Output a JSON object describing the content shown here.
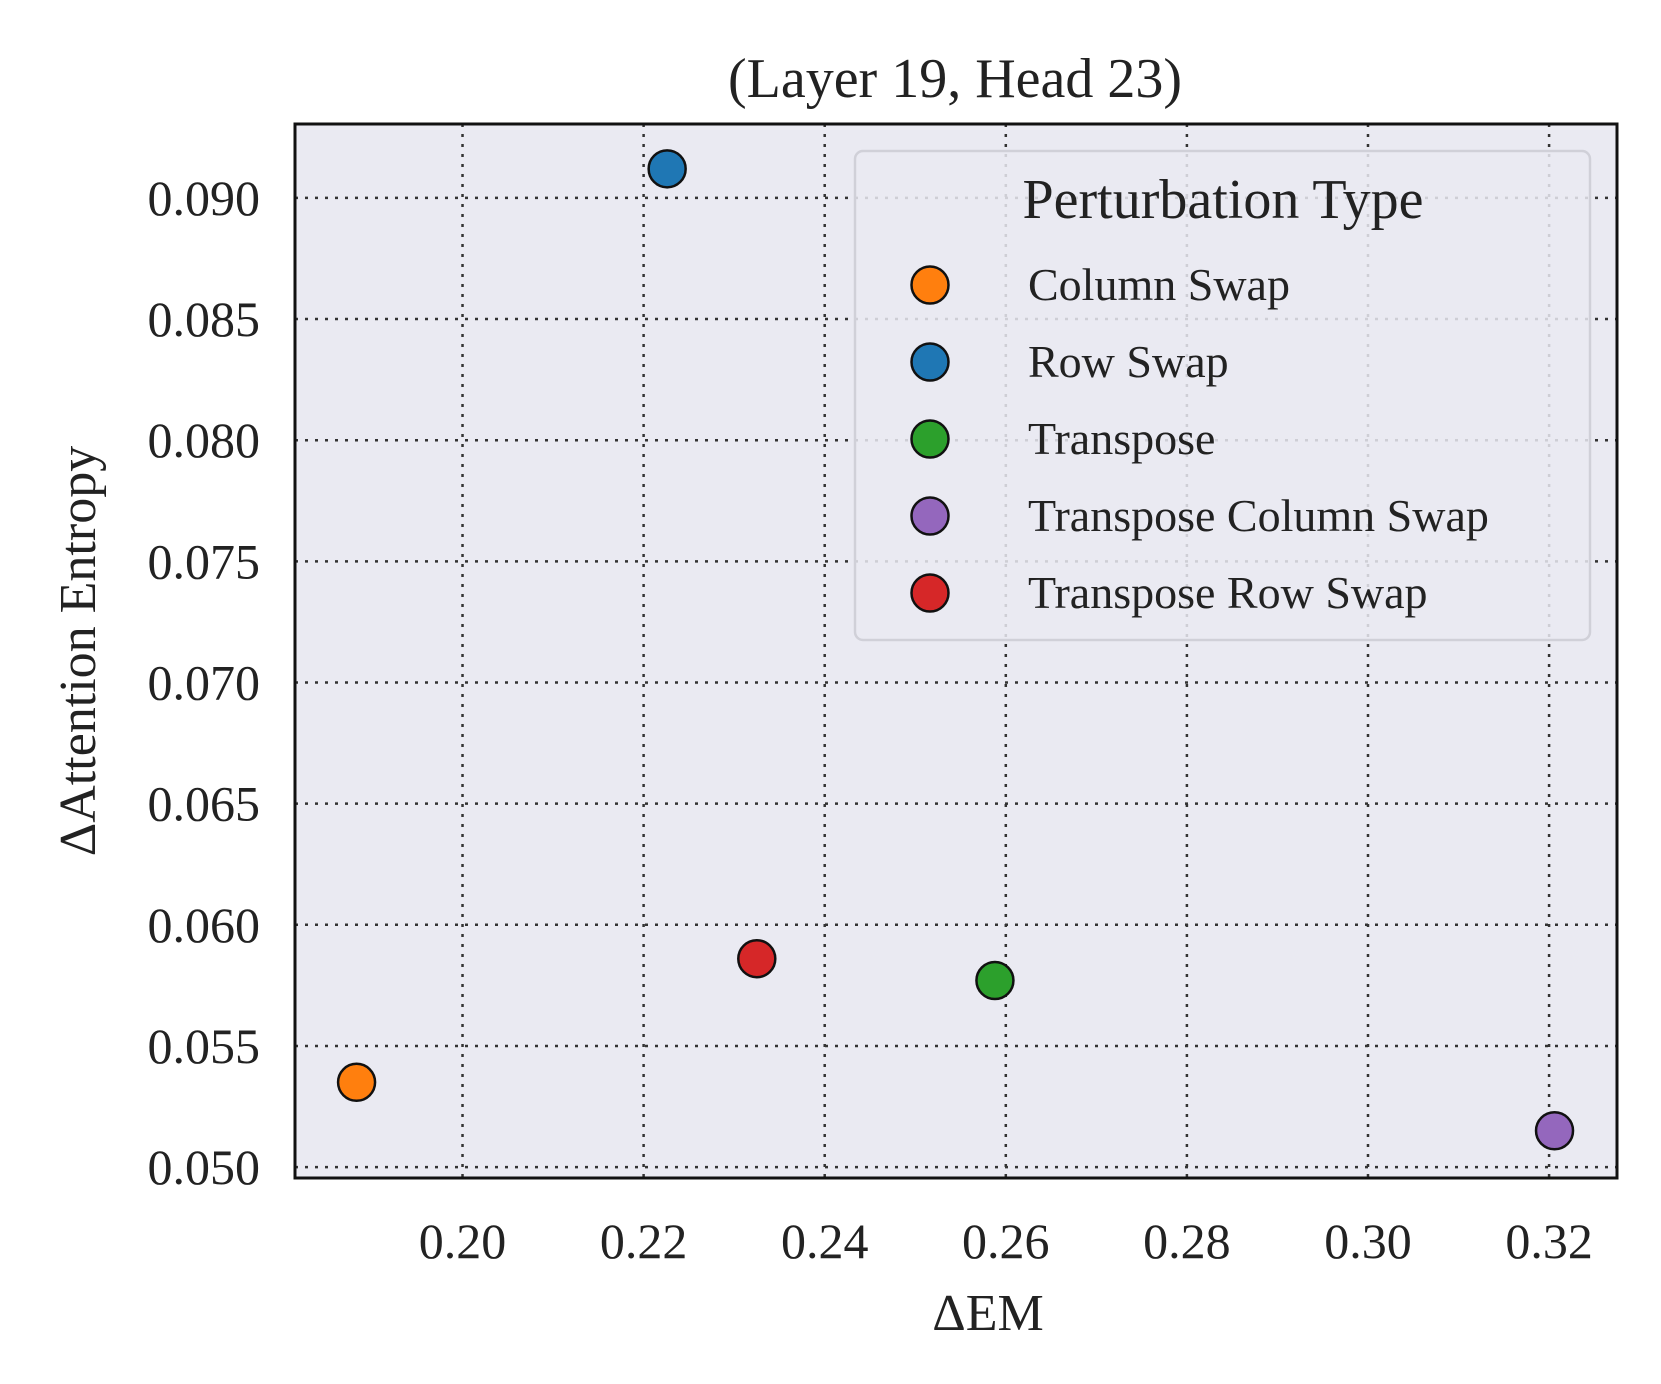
{
  "chart_data": {
    "type": "scatter",
    "title": "(Layer 19, Head 23)",
    "xlabel": "ΔEM",
    "ylabel": "ΔAttention Entropy",
    "xlim": [
      0.1815,
      0.3275
    ],
    "ylim": [
      0.04955,
      0.09305
    ],
    "xticks": [
      0.2,
      0.22,
      0.24,
      0.26,
      0.28,
      0.3,
      0.32
    ],
    "xtick_labels": [
      "0.20",
      "0.22",
      "0.24",
      "0.26",
      "0.28",
      "0.30",
      "0.32"
    ],
    "yticks": [
      0.05,
      0.055,
      0.06,
      0.065,
      0.07,
      0.075,
      0.08,
      0.085,
      0.09
    ],
    "ytick_labels": [
      "0.050",
      "0.055",
      "0.060",
      "0.065",
      "0.070",
      "0.075",
      "0.080",
      "0.085",
      "0.090"
    ],
    "grid": true,
    "grid_style": "dotted",
    "background_color": "#eaeaf2",
    "legend": {
      "title": "Perturbation Type",
      "placement": "top-right"
    },
    "series": [
      {
        "name": "Column Swap",
        "color": "#ff7f0e",
        "points": [
          {
            "x": 0.1883,
            "y": 0.0535
          }
        ]
      },
      {
        "name": "Row Swap",
        "color": "#1f77b4",
        "points": [
          {
            "x": 0.2226,
            "y": 0.0912
          }
        ]
      },
      {
        "name": "Transpose",
        "color": "#2ca02c",
        "points": [
          {
            "x": 0.2588,
            "y": 0.0577
          }
        ]
      },
      {
        "name": "Transpose Column Swap",
        "color": "#9467bd",
        "points": [
          {
            "x": 0.3206,
            "y": 0.0515
          }
        ]
      },
      {
        "name": "Transpose Row Swap",
        "color": "#d62728",
        "points": [
          {
            "x": 0.2325,
            "y": 0.0586
          }
        ]
      }
    ]
  }
}
